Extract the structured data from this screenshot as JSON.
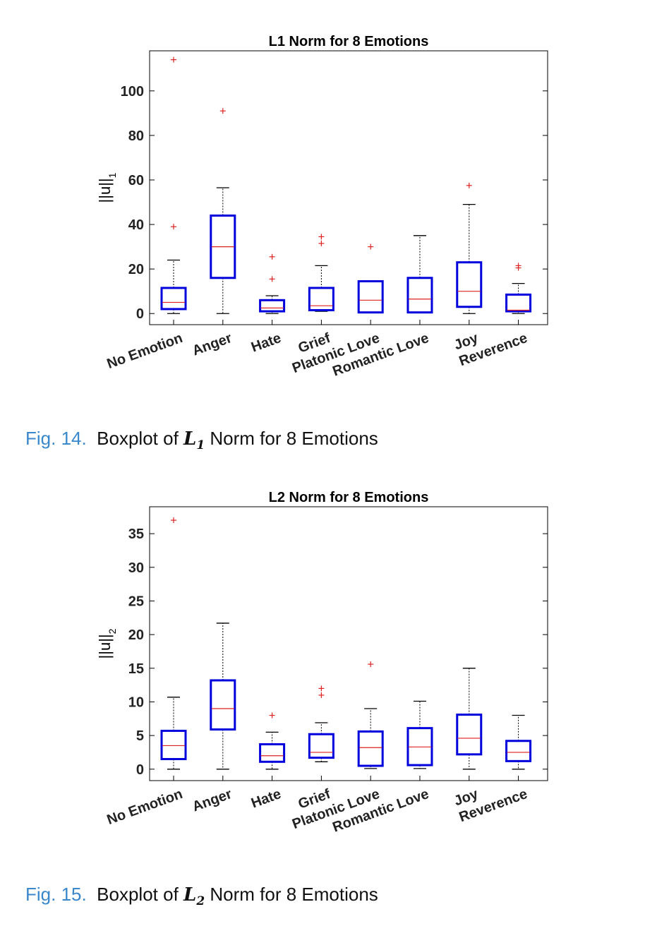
{
  "figures": [
    {
      "caption": {
        "label": "Fig. 14.",
        "pre": "Boxplot of ",
        "math": "L",
        "sub": "1",
        "post": " Norm for 8 Emotions"
      },
      "chart_data": {
        "type": "box",
        "title": "L1 Norm for 8 Emotions",
        "ylabel": "||u||",
        "ylabel_sub": "1",
        "categories": [
          "No Emotion",
          "Anger",
          "Hate",
          "Grief",
          "Platonic Love",
          "Romantic Love",
          "Joy",
          "Reverence"
        ],
        "yticks": [
          0,
          20,
          40,
          60,
          80,
          100
        ],
        "ylim": [
          -5,
          118
        ],
        "boxes": [
          {
            "whislo": 0,
            "q1": 2,
            "med": 5,
            "q3": 11.5,
            "whishi": 24,
            "outliers": [
              39,
              114
            ]
          },
          {
            "whislo": 0,
            "q1": 16,
            "med": 30,
            "q3": 44,
            "whishi": 56.5,
            "outliers": [
              91
            ]
          },
          {
            "whislo": 0,
            "q1": 1,
            "med": 2.5,
            "q3": 6,
            "whishi": 8,
            "outliers": [
              15.5,
              25.5
            ]
          },
          {
            "whislo": 1,
            "q1": 1.5,
            "med": 3.5,
            "q3": 11.5,
            "whishi": 21.5,
            "outliers": [
              31.5,
              34.5
            ]
          },
          {
            "whislo": 0.5,
            "q1": 0.5,
            "med": 6,
            "q3": 14.5,
            "whishi": 14.5,
            "outliers": [
              30
            ]
          },
          {
            "whislo": 0.5,
            "q1": 0.5,
            "med": 6.5,
            "q3": 16,
            "whishi": 35,
            "outliers": []
          },
          {
            "whislo": 0,
            "q1": 3,
            "med": 10,
            "q3": 23,
            "whishi": 49,
            "outliers": [
              57.5
            ]
          },
          {
            "whislo": 0,
            "q1": 1,
            "med": 1.5,
            "q3": 8.5,
            "whishi": 13.5,
            "outliers": [
              20.5,
              21.5
            ]
          }
        ],
        "colors": {
          "box": "#0000dd",
          "median": "#dd2222",
          "outlier": "#dd2222",
          "whisker": "#000000"
        }
      }
    },
    {
      "caption": {
        "label": "Fig. 15.",
        "pre": "Boxplot of ",
        "math": "L",
        "sub": "2",
        "post": " Norm for 8 Emotions"
      },
      "chart_data": {
        "type": "box",
        "title": "L2 Norm for 8 Emotions",
        "ylabel": "||u||",
        "ylabel_sub": "2",
        "categories": [
          "No Emotion",
          "Anger",
          "Hate",
          "Grief",
          "Platonic Love",
          "Romantic Love",
          "Joy",
          "Reverence"
        ],
        "yticks": [
          0,
          5,
          10,
          15,
          20,
          25,
          30,
          35
        ],
        "ylim": [
          -1.7,
          39
        ],
        "boxes": [
          {
            "whislo": 0,
            "q1": 1.5,
            "med": 3.5,
            "q3": 5.7,
            "whishi": 10.7,
            "outliers": [
              37
            ]
          },
          {
            "whislo": 0,
            "q1": 5.9,
            "med": 9,
            "q3": 13.2,
            "whishi": 21.7,
            "outliers": []
          },
          {
            "whislo": 0,
            "q1": 1.1,
            "med": 2,
            "q3": 3.7,
            "whishi": 5.5,
            "outliers": [
              8
            ]
          },
          {
            "whislo": 1.1,
            "q1": 1.7,
            "med": 2.5,
            "q3": 5.2,
            "whishi": 6.9,
            "outliers": [
              11,
              12
            ]
          },
          {
            "whislo": 0.1,
            "q1": 0.5,
            "med": 3.2,
            "q3": 5.6,
            "whishi": 9,
            "outliers": [
              15.6
            ]
          },
          {
            "whislo": 0.1,
            "q1": 0.6,
            "med": 3.3,
            "q3": 6.1,
            "whishi": 10.1,
            "outliers": []
          },
          {
            "whislo": 0,
            "q1": 2.2,
            "med": 4.6,
            "q3": 8.1,
            "whishi": 15,
            "outliers": []
          },
          {
            "whislo": 0,
            "q1": 1.2,
            "med": 2.5,
            "q3": 4.2,
            "whishi": 8,
            "outliers": []
          }
        ],
        "colors": {
          "box": "#0000dd",
          "median": "#dd2222",
          "outlier": "#dd2222",
          "whisker": "#000000"
        }
      }
    }
  ]
}
